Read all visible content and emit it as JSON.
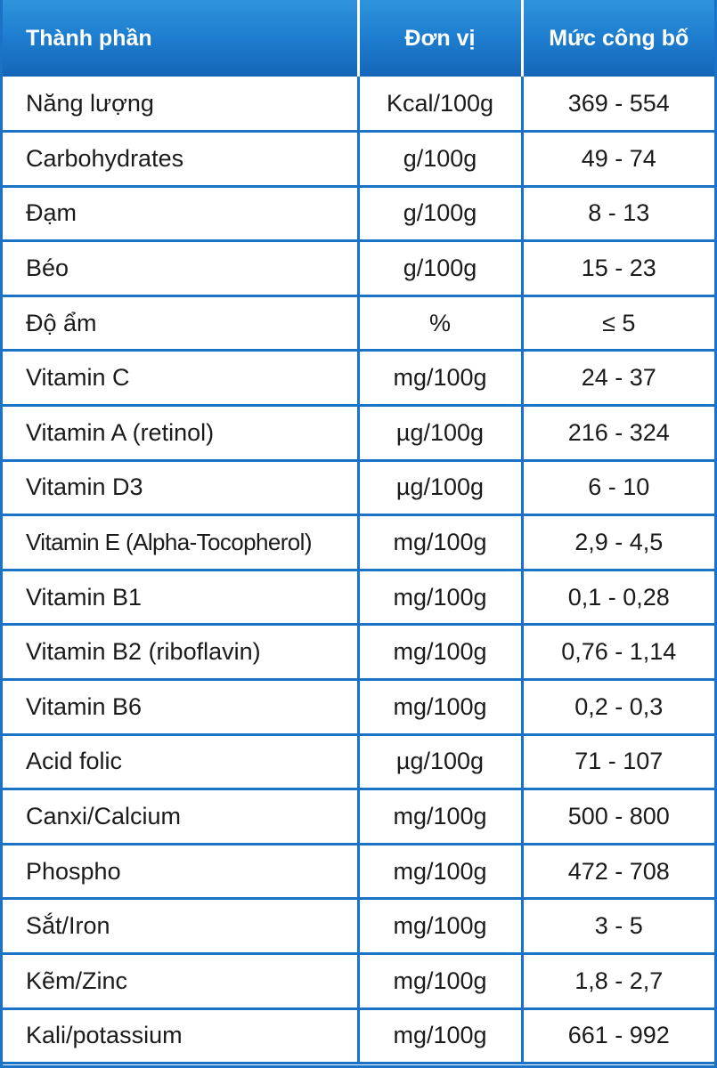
{
  "header": {
    "component": "Thành phần",
    "unit": "Đơn vị",
    "declared": "Mức công bố"
  },
  "rows": [
    {
      "component": "Năng lượng",
      "unit": "Kcal/100g",
      "value": "369 - 554"
    },
    {
      "component": "Carbohydrates",
      "unit": "g/100g",
      "value": "49 - 74"
    },
    {
      "component": "Đạm",
      "unit": "g/100g",
      "value": "8 - 13"
    },
    {
      "component": "Béo",
      "unit": "g/100g",
      "value": "15 - 23"
    },
    {
      "component": "Độ ẩm",
      "unit": "%",
      "value": "≤ 5"
    },
    {
      "component": "Vitamin C",
      "unit": "mg/100g",
      "value": "24 - 37"
    },
    {
      "component": "Vitamin A (retinol)",
      "unit": "µg/100g",
      "value": "216 - 324"
    },
    {
      "component": "Vitamin D3",
      "unit": "µg/100g",
      "value": "6 - 10"
    },
    {
      "component": "Vitamin E (Alpha-Tocopherol)",
      "unit": "mg/100g",
      "value": "2,9 - 4,5"
    },
    {
      "component": "Vitamin B1",
      "unit": "mg/100g",
      "value": "0,1 - 0,28"
    },
    {
      "component": "Vitamin B2 (riboflavin)",
      "unit": "mg/100g",
      "value": "0,76 - 1,14"
    },
    {
      "component": "Vitamin B6",
      "unit": "mg/100g",
      "value": "0,2 - 0,3"
    },
    {
      "component": "Acid folic",
      "unit": "µg/100g",
      "value": "71 - 107"
    },
    {
      "component": "Canxi/Calcium",
      "unit": "mg/100g",
      "value": "500 - 800"
    },
    {
      "component": "Phospho",
      "unit": "mg/100g",
      "value": "472 - 708"
    },
    {
      "component": "Sắt/Iron",
      "unit": "mg/100g",
      "value": "3 - 5"
    },
    {
      "component": "Kẽm/Zinc",
      "unit": "mg/100g",
      "value": "1,8 - 2,7"
    },
    {
      "component": "Kali/potassium",
      "unit": "mg/100g",
      "value": "661 - 992"
    }
  ],
  "colors": {
    "header_bg": "#1f7fd0",
    "border": "#1a73c6",
    "text": "#1b1b1b"
  }
}
